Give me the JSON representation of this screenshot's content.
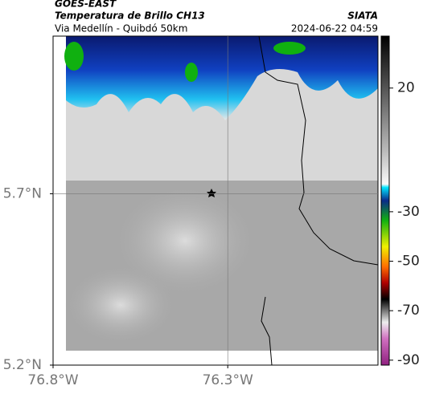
{
  "header": {
    "source": "GOES-EAST",
    "product": "Temperatura de Brillo CH13",
    "region": "Via Medellín - Quibdó 50km",
    "org": "SIATA",
    "timestamp": "2024-06-22 04:59"
  },
  "map": {
    "xlim": [
      -76.8,
      -75.87
    ],
    "ylim": [
      5.2,
      6.16
    ],
    "xticks": [
      {
        "value": -76.8,
        "label": "76.8°W"
      },
      {
        "value": -76.3,
        "label": "76.3°W"
      }
    ],
    "yticks": [
      {
        "value": 5.2,
        "label": "5.2°N"
      },
      {
        "value": 5.7,
        "label": "5.7°N"
      }
    ],
    "grid": true
  },
  "colorbar": {
    "lim": [
      -92,
      41
    ],
    "ticks": [
      20,
      -30,
      -50,
      -70,
      -90
    ]
  }
}
